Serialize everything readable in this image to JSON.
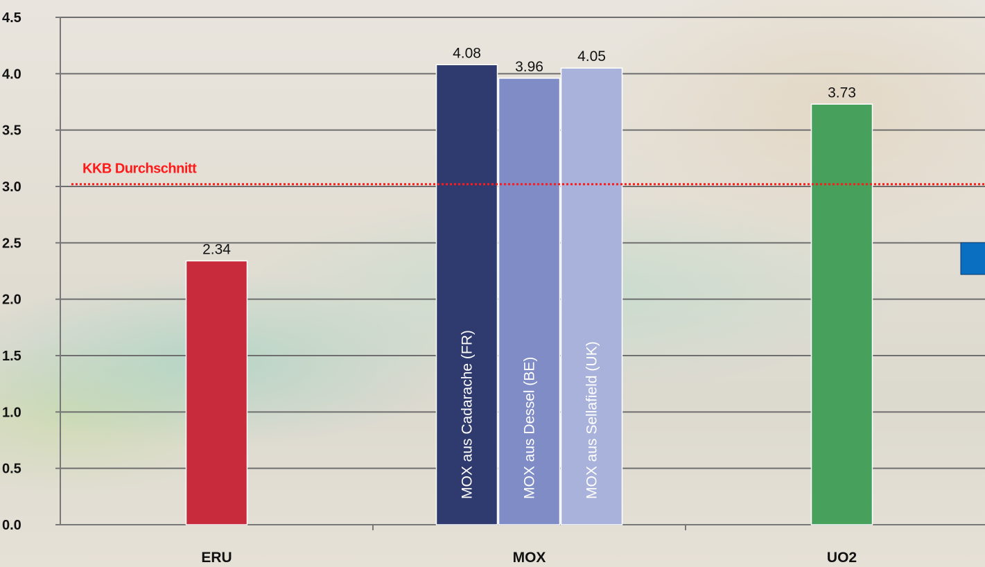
{
  "chart_data": {
    "type": "bar",
    "categories": [
      "ERU",
      "MOX",
      "UO2"
    ],
    "ylim": [
      0,
      4.5
    ],
    "y_ticks": [
      "0.0",
      "0.5",
      "1.0",
      "1.5",
      "2.0",
      "2.5",
      "3.0",
      "3.5",
      "4.0",
      "4.5"
    ],
    "grid": true,
    "bars": [
      {
        "category": "ERU",
        "label": "",
        "value": 2.34,
        "value_label": "2.34",
        "color": "#c82b3b"
      },
      {
        "category": "MOX",
        "label": "MOX aus Cadarache (FR)",
        "value": 4.08,
        "value_label": "4.08",
        "color": "#2f3a6e"
      },
      {
        "category": "MOX",
        "label": "MOX aus Dessel (BE)",
        "value": 3.96,
        "value_label": "3.96",
        "color": "#7f8cc6"
      },
      {
        "category": "MOX",
        "label": "MOX aus Sellafield (UK)",
        "value": 4.05,
        "value_label": "4.05",
        "color": "#a9b2da"
      },
      {
        "category": "UO2",
        "label": "",
        "value": 3.73,
        "value_label": "3.73",
        "color": "#47a05c"
      }
    ],
    "reference_line": {
      "label": "KKB Durchschnitt",
      "value": 3.02,
      "color": "#ff1a1a"
    },
    "legend_marker_color": "#0b6fc1"
  }
}
